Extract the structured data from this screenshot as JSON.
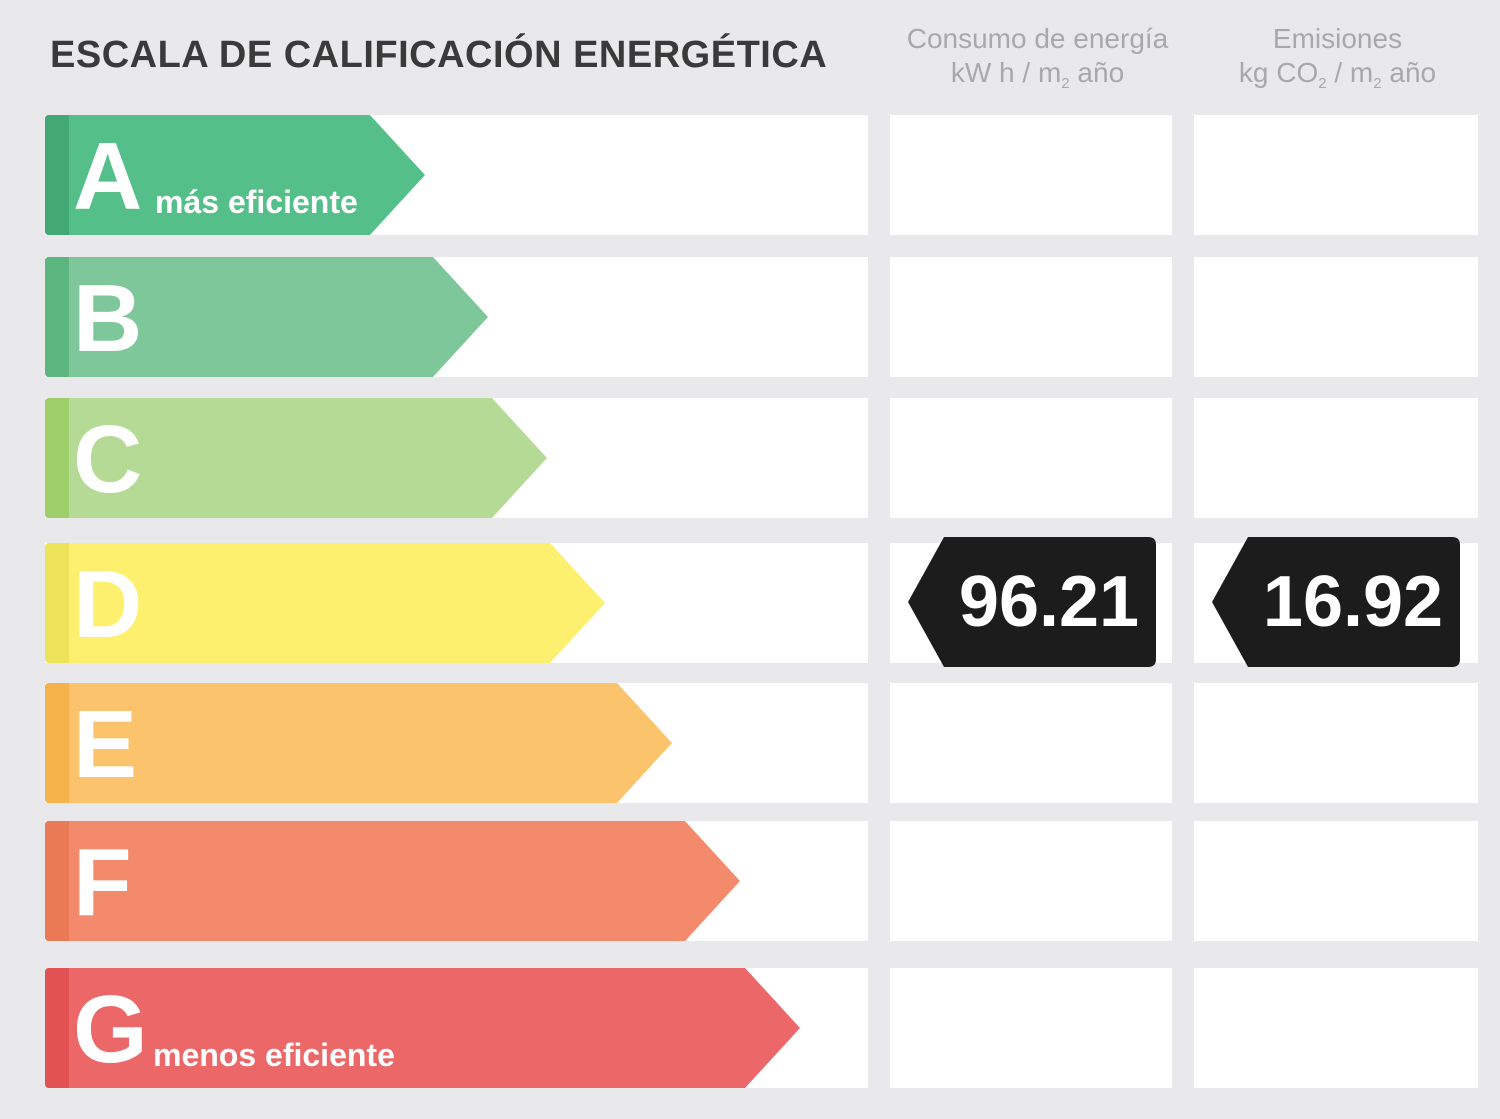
{
  "title": "ESCALA DE CALIFICACIÓN ENERGÉTICA",
  "columns": {
    "energy": {
      "line1": "Consumo de energía",
      "line2_pre": "kW h / m",
      "line2_sub": "2",
      "line2_post": " año"
    },
    "co2": {
      "line1": "Emisiones",
      "line2_pre": "kg CO",
      "line2_sub1": "2",
      "line2_mid": " / m",
      "line2_sub2": "2",
      "line2_post": " año"
    }
  },
  "ratings": [
    {
      "letter": "A",
      "caption": "más eficiente",
      "color": "#55bf8a",
      "edge_color": "#42a874"
    },
    {
      "letter": "B",
      "caption": "",
      "color": "#7dc79a",
      "edge_color": "#5bb67f"
    },
    {
      "letter": "C",
      "caption": "",
      "color": "#b5da96",
      "edge_color": "#9ccf6a"
    },
    {
      "letter": "D",
      "caption": "",
      "color": "#fcf06e",
      "edge_color": "#eee45a"
    },
    {
      "letter": "E",
      "caption": "",
      "color": "#fbc46c",
      "edge_color": "#f6b24a"
    },
    {
      "letter": "F",
      "caption": "",
      "color": "#f48a6c",
      "edge_color": "#e97a55"
    },
    {
      "letter": "G",
      "caption": "menos eficiente",
      "color": "#ec6868",
      "edge_color": "#e25252"
    }
  ],
  "result": {
    "rating": "D",
    "energy_value": "96.21",
    "co2_value": "16.92",
    "tag_color": "#1c1c1c"
  }
}
